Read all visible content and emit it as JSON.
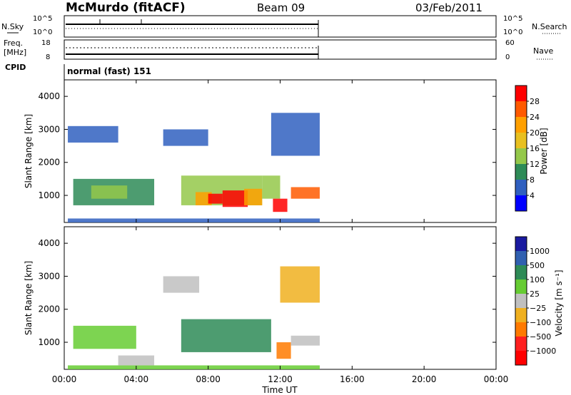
{
  "header": {
    "station": "McMurdo (fitACF)",
    "beam": "Beam 09",
    "date": "03/Feb/2011"
  },
  "aux_labels": {
    "nsky": "N.Sky",
    "nsky_hi": "10^5",
    "nsky_lo": "10^0",
    "nsearch": "N.Search",
    "nsearch_hi": "10^5",
    "nsearch_lo": "10^0",
    "freq": "Freq.",
    "freq_unit": "[MHz]",
    "freq_hi": "18",
    "freq_lo": "8",
    "nave": "Nave",
    "nave_hi": "60",
    "nave_lo": "0",
    "cpid": "CPID",
    "cpid_value": "normal (fast) 151"
  },
  "colorbars": {
    "power": {
      "label": "Power [dB]",
      "ticks": [
        "28",
        "24",
        "20",
        "16",
        "12",
        "8",
        "4"
      ],
      "colors": [
        "#ff0000",
        "#ff5a00",
        "#ffa000",
        "#e8c020",
        "#94c84a",
        "#2e8b57",
        "#3060c0",
        "#0000ff"
      ]
    },
    "velocity": {
      "label": "Velocity [m s⁻¹]",
      "ticks": [
        "1000",
        "500",
        "100",
        "25",
        "−25",
        "−100",
        "−500",
        "−1000"
      ],
      "colors": [
        "#1a1aa0",
        "#3060b0",
        "#2e8b57",
        "#66cc33",
        "#c0c0c0",
        "#f0b020",
        "#ff7a00",
        "#ff2020",
        "#ff0000"
      ]
    }
  },
  "chart_data": [
    {
      "type": "heatmap",
      "name": "Power",
      "xlabel": "Time UT",
      "ylabel": "Slant Range [km]",
      "yticks": [
        "4000",
        "3000",
        "2000",
        "1000"
      ],
      "xlim": [
        "00:00",
        "24:00"
      ],
      "ylim": [
        180,
        4500
      ],
      "cells": [
        {
          "t0": 0.2,
          "t1": 14.2,
          "r0": 180,
          "r1": 300,
          "v": 6
        },
        {
          "t0": 0.2,
          "t1": 3.0,
          "r0": 2600,
          "r1": 3100,
          "v": 6
        },
        {
          "t0": 0.5,
          "t1": 5.0,
          "r0": 700,
          "r1": 1500,
          "v": 8
        },
        {
          "t0": 1.5,
          "t1": 3.5,
          "r0": 900,
          "r1": 1300,
          "v": 13
        },
        {
          "t0": 5.5,
          "t1": 8.0,
          "r0": 2500,
          "r1": 3000,
          "v": 6
        },
        {
          "t0": 6.5,
          "t1": 11.0,
          "r0": 700,
          "r1": 1600,
          "v": 13
        },
        {
          "t0": 7.3,
          "t1": 8.2,
          "r0": 700,
          "r1": 1100,
          "v": 22
        },
        {
          "t0": 8.0,
          "t1": 8.8,
          "r0": 750,
          "r1": 1050,
          "v": 29
        },
        {
          "t0": 8.8,
          "t1": 10.2,
          "r0": 650,
          "r1": 1150,
          "v": 29
        },
        {
          "t0": 10.0,
          "t1": 11.0,
          "r0": 700,
          "r1": 1200,
          "v": 22
        },
        {
          "t0": 11.0,
          "t1": 12.0,
          "r0": 900,
          "r1": 1600,
          "v": 12
        },
        {
          "t0": 11.6,
          "t1": 12.4,
          "r0": 500,
          "r1": 900,
          "v": 29
        },
        {
          "t0": 12.6,
          "t1": 14.2,
          "r0": 900,
          "r1": 1250,
          "v": 24
        },
        {
          "t0": 11.5,
          "t1": 14.2,
          "r0": 2200,
          "r1": 3500,
          "v": 6
        }
      ]
    },
    {
      "type": "heatmap",
      "name": "Velocity",
      "xlabel": "Time UT",
      "ylabel": "Slant Range [km]",
      "yticks": [
        "4000",
        "3000",
        "2000",
        "1000"
      ],
      "xlim": [
        "00:00",
        "24:00"
      ],
      "ylim": [
        180,
        4500
      ],
      "cells": [
        {
          "t0": 0.2,
          "t1": 14.2,
          "r0": 180,
          "r1": 300,
          "v": 50
        },
        {
          "t0": 3.0,
          "t1": 5.0,
          "r0": 300,
          "r1": 600,
          "v": 0
        },
        {
          "t0": 0.5,
          "t1": 4.0,
          "r0": 800,
          "r1": 1500,
          "v": 80
        },
        {
          "t0": 5.5,
          "t1": 7.5,
          "r0": 2500,
          "r1": 3000,
          "v": 0
        },
        {
          "t0": 6.5,
          "t1": 11.5,
          "r0": 700,
          "r1": 1700,
          "v": 300
        },
        {
          "t0": 11.8,
          "t1": 12.6,
          "r0": 500,
          "r1": 1000,
          "v": -200
        },
        {
          "t0": 12.0,
          "t1": 14.2,
          "r0": 2200,
          "r1": 3300,
          "v": -50
        },
        {
          "t0": 12.6,
          "t1": 14.2,
          "r0": 900,
          "r1": 1200,
          "v": 0
        }
      ]
    }
  ],
  "time_ticks": [
    "00:00",
    "04:00",
    "08:00",
    "12:00",
    "16:00",
    "20:00",
    "00:00"
  ]
}
